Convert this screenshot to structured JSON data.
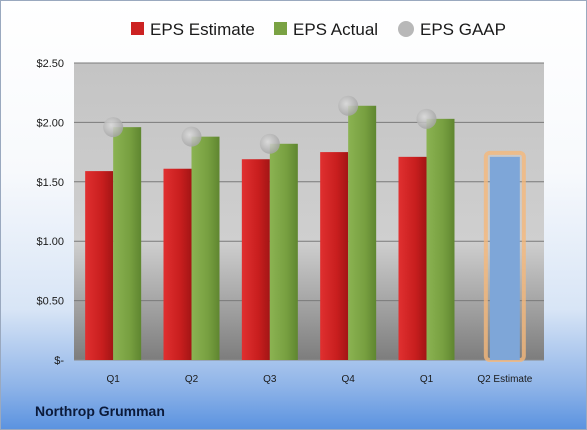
{
  "brand": "Northrop Grumman",
  "colors": {
    "estimate": "#cc2222",
    "actual": "#7aa243",
    "gaap": "#b8b8b8",
    "q2_estimate": "#7ea6d8",
    "q2_estimate_glow": "#f5b87a"
  },
  "chart_data": {
    "type": "bar",
    "categories": [
      "Q1",
      "Q2",
      "Q3",
      "Q4",
      "Q1",
      "Q2 Estimate"
    ],
    "series": [
      {
        "name": "EPS Estimate",
        "values": [
          1.59,
          1.61,
          1.69,
          1.75,
          1.71,
          null
        ]
      },
      {
        "name": "EPS Actual",
        "values": [
          1.96,
          1.88,
          1.82,
          2.14,
          2.03,
          null
        ]
      },
      {
        "name": "EPS GAAP",
        "marker": "dot",
        "values": [
          1.96,
          1.88,
          1.82,
          2.14,
          2.03,
          null
        ]
      }
    ],
    "q2_estimate_value": 1.71,
    "ylim": [
      0,
      2.5
    ],
    "yticks": [
      0,
      0.5,
      1.0,
      1.5,
      2.0,
      2.5
    ],
    "ytick_labels": [
      "$-",
      "$0.50",
      "$1.00",
      "$1.50",
      "$2.00",
      "$2.50"
    ],
    "legend_position": "top",
    "grid": true
  }
}
